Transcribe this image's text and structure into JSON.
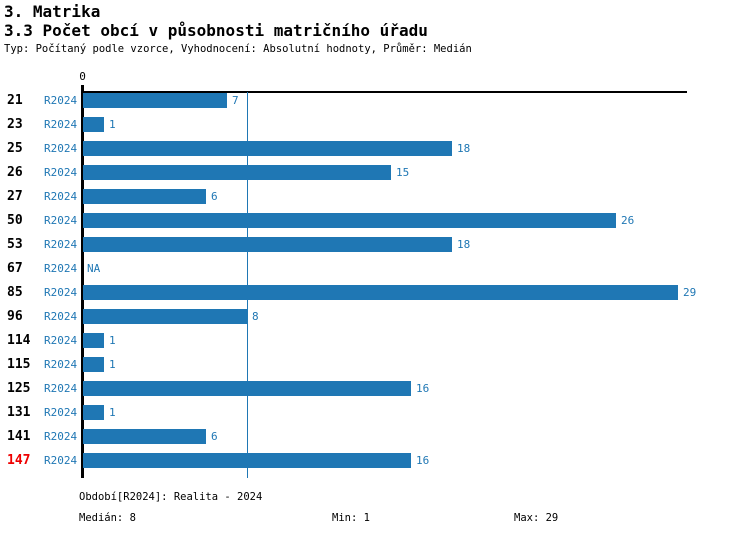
{
  "header": {
    "title": "3. Matrika",
    "subtitle": "3.3 Počet obcí v působnosti matričního úřadu",
    "meta": "Typ: Počítaný podle vzorce, Vyhodnocení: Absolutní hodnoty, Průměr: Medián"
  },
  "chart_data": {
    "type": "bar",
    "orientation": "horizontal",
    "categories": [
      "21",
      "23",
      "25",
      "26",
      "27",
      "50",
      "53",
      "67",
      "85",
      "96",
      "114",
      "115",
      "125",
      "131",
      "141",
      "147"
    ],
    "series": [
      {
        "name": "R2024",
        "values": [
          7,
          1,
          18,
          15,
          6,
          26,
          18,
          null,
          29,
          8,
          1,
          1,
          16,
          1,
          6,
          16
        ]
      }
    ],
    "na_label": "NA",
    "x_axis_zero_label": "0",
    "xlim": [
      0,
      29
    ],
    "median_line_value": 8,
    "highlighted_category": "147",
    "grid": false,
    "legend": false
  },
  "footer": {
    "period": "Období[R2024]: Realita - 2024",
    "median": "Medián: 8",
    "min": "Min: 1",
    "max": "Max: 29"
  },
  "colors": {
    "bar": "#1f77b4",
    "text_blue": "#1f77b4",
    "highlight_red": "#ee0000",
    "axis_black": "#000000"
  }
}
